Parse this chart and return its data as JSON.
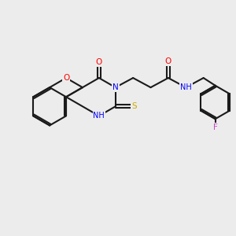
{
  "bg_color": "#ececec",
  "bond_color": "#1a1a1a",
  "atom_colors": {
    "O": "#ff0000",
    "N": "#0000ff",
    "S": "#ccaa00",
    "F": "#cc44cc",
    "H": "#44aaaa",
    "C": "#1a1a1a"
  },
  "figsize": [
    3.0,
    3.0
  ],
  "dpi": 100
}
